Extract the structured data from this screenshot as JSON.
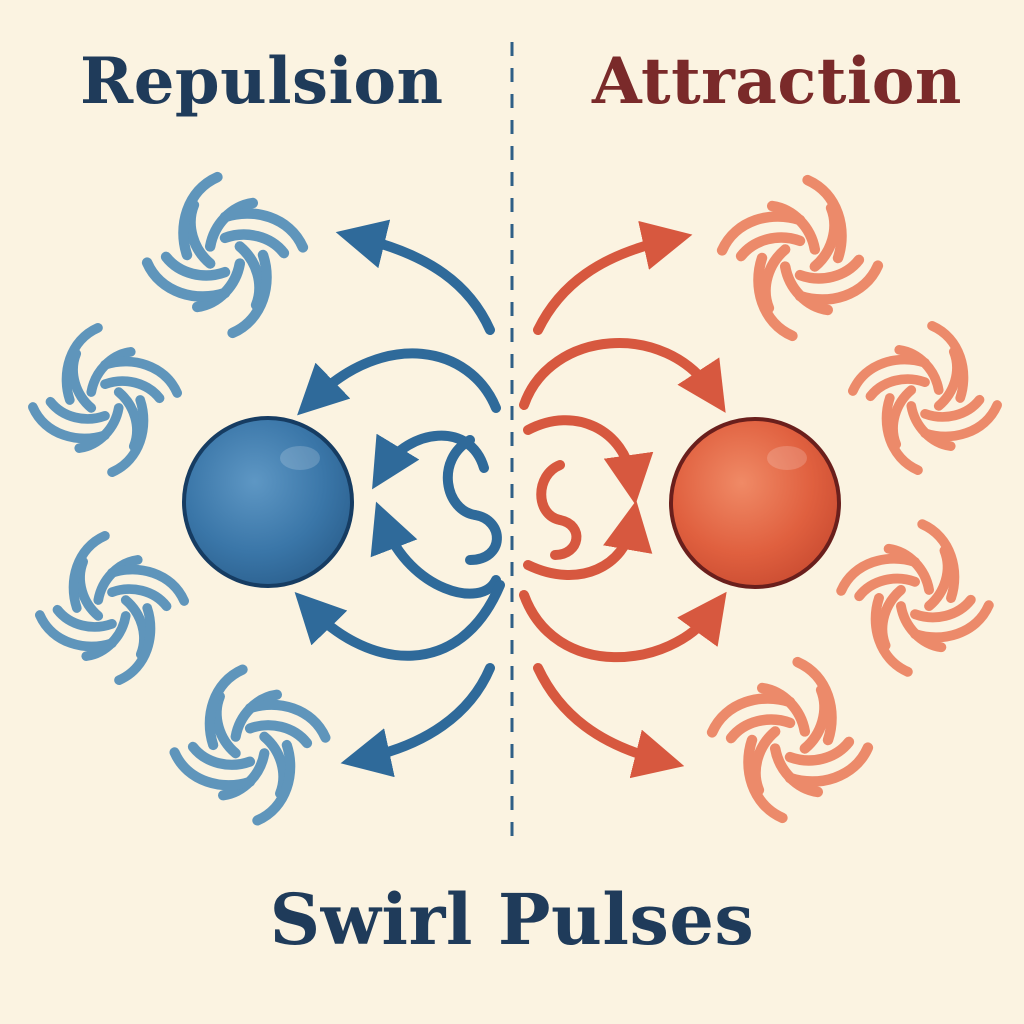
{
  "labels": {
    "left": "Repulsion",
    "right": "Attraction",
    "title": "Swirl Pulses"
  },
  "colors": {
    "background": "#fbf3e1",
    "repulsion_text": "#1f3b5a",
    "attraction_text": "#7a2a2a",
    "repulsion_main": "#2f6a9a",
    "repulsion_light": "#5f95bb",
    "attraction_main": "#d7583f",
    "attraction_light": "#ec8a6a",
    "divider": "#2f5f86",
    "sphere_left": "#3a76a8",
    "sphere_left_edge": "#163c62",
    "sphere_right": "#e0603f",
    "sphere_right_edge": "#6a1f1c"
  },
  "icons": [
    "swirl-icon",
    "arrow-icon",
    "sphere-icon"
  ]
}
